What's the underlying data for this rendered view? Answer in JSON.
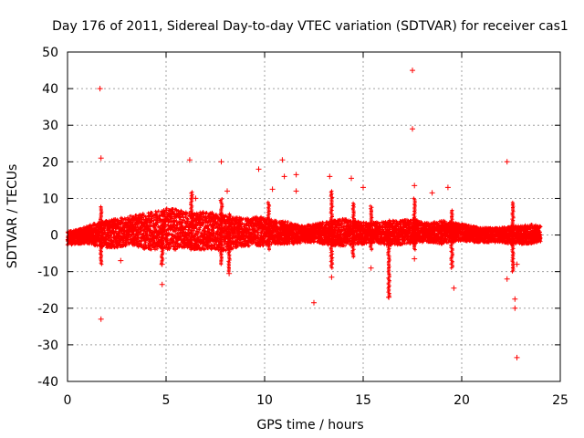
{
  "chart_data": {
    "type": "scatter",
    "title": "Day 176 of 2011, Sidereal Day-to-day VTEC variation (SDTVAR) for receiver cas1",
    "xlabel": "GPS time / hours",
    "ylabel": "SDTVAR / TECUs",
    "xlim": [
      0,
      25
    ],
    "ylim": [
      -40,
      50
    ],
    "xticks": [
      0,
      5,
      10,
      15,
      20,
      25
    ],
    "yticks": [
      -40,
      -30,
      -20,
      -10,
      0,
      10,
      20,
      30,
      40,
      50
    ],
    "x_tick_labels": [
      "0",
      "5",
      "10",
      "15",
      "20",
      "25"
    ],
    "y_tick_labels": [
      "-40",
      "-30",
      "-20",
      "-10",
      "0",
      "10",
      "20",
      "30",
      "40",
      "50"
    ],
    "grid": true,
    "marker": "+",
    "series_color": "#ff0000",
    "band_envelope": {
      "description": "dense cloud of samples; approximate lower/upper bounds of the bulk per time",
      "x": [
        0,
        0.5,
        1.0,
        1.5,
        2.0,
        2.5,
        3.0,
        3.5,
        4.0,
        4.5,
        5.0,
        5.5,
        6.0,
        6.5,
        7.0,
        7.5,
        8.0,
        8.5,
        9.0,
        9.5,
        10.0,
        10.5,
        11.0,
        11.5,
        12.0,
        12.5,
        13.0,
        13.5,
        14.0,
        14.5,
        15.0,
        15.5,
        16.0,
        16.5,
        17.0,
        17.5,
        18.0,
        18.5,
        19.0,
        19.5,
        20.0,
        20.5,
        21.0,
        21.5,
        22.0,
        22.5,
        23.0,
        23.5,
        24.0
      ],
      "lower": [
        -3.0,
        -2.5,
        -2.5,
        -3.0,
        -3.5,
        -3.5,
        -3.0,
        -3.5,
        -4.0,
        -4.0,
        -4.0,
        -4.0,
        -3.5,
        -4.0,
        -4.0,
        -4.0,
        -4.5,
        -3.5,
        -3.0,
        -3.0,
        -3.0,
        -2.5,
        -2.5,
        -2.5,
        -2.0,
        -2.0,
        -2.5,
        -3.0,
        -3.0,
        -2.5,
        -2.5,
        -2.0,
        -2.5,
        -3.0,
        -2.5,
        -2.5,
        -2.0,
        -2.0,
        -2.5,
        -2.0,
        -1.5,
        -2.0,
        -2.0,
        -2.0,
        -2.0,
        -2.5,
        -2.5,
        -2.5,
        -2.0
      ],
      "upper": [
        1.0,
        1.5,
        2.5,
        3.5,
        4.0,
        4.5,
        5.0,
        5.5,
        6.0,
        6.5,
        7.5,
        7.0,
        6.5,
        6.0,
        6.5,
        6.0,
        5.5,
        5.0,
        4.5,
        5.0,
        5.0,
        4.0,
        4.0,
        3.0,
        2.5,
        3.0,
        3.5,
        4.0,
        4.5,
        4.0,
        3.5,
        3.5,
        3.5,
        4.0,
        4.0,
        4.5,
        3.5,
        3.5,
        4.0,
        3.5,
        3.0,
        2.5,
        2.0,
        2.0,
        2.0,
        2.5,
        2.5,
        3.0,
        2.5
      ]
    },
    "spikes": [
      {
        "x": 1.7,
        "lo": -8.0,
        "hi": 8.0
      },
      {
        "x": 4.8,
        "lo": -8.0,
        "hi": 4.0
      },
      {
        "x": 6.3,
        "lo": -4.0,
        "hi": 12.0
      },
      {
        "x": 7.8,
        "lo": -8.0,
        "hi": 10.0
      },
      {
        "x": 8.2,
        "lo": -10.0,
        "hi": 6.0
      },
      {
        "x": 10.2,
        "lo": -4.0,
        "hi": 9.0
      },
      {
        "x": 13.4,
        "lo": -9.0,
        "hi": 12.0
      },
      {
        "x": 14.5,
        "lo": -6.0,
        "hi": 9.0
      },
      {
        "x": 15.4,
        "lo": -4.0,
        "hi": 8.0
      },
      {
        "x": 16.3,
        "lo": -17.0,
        "hi": 4.0
      },
      {
        "x": 17.6,
        "lo": -4.0,
        "hi": 10.0
      },
      {
        "x": 19.5,
        "lo": -9.0,
        "hi": 7.0
      },
      {
        "x": 22.6,
        "lo": -10.0,
        "hi": 9.0
      }
    ],
    "outliers": {
      "x": [
        1.65,
        1.7,
        1.7,
        2.7,
        4.8,
        4.8,
        5.7,
        6.2,
        6.5,
        7.8,
        8.1,
        8.4,
        8.2,
        9.7,
        10.4,
        10.9,
        11.0,
        11.6,
        11.6,
        12.5,
        13.3,
        13.4,
        14.4,
        15.0,
        15.4,
        16.3,
        17.5,
        17.5,
        17.6,
        17.6,
        18.5,
        19.3,
        19.6,
        22.3,
        22.3,
        22.7,
        22.7,
        22.8,
        22.8
      ],
      "y": [
        40.0,
        21.0,
        -23.0,
        -7.0,
        -13.5,
        -8.0,
        5.0,
        20.5,
        10.0,
        20.0,
        12.0,
        4.5,
        -10.5,
        18.0,
        12.5,
        20.5,
        16.0,
        16.5,
        12.0,
        -18.5,
        16.0,
        -11.5,
        15.5,
        13.0,
        -9.0,
        -17.0,
        45.0,
        29.0,
        13.5,
        -6.5,
        11.5,
        13.0,
        -14.5,
        20.0,
        -12.0,
        -20.0,
        -17.5,
        -33.5,
        -8.0
      ]
    }
  }
}
